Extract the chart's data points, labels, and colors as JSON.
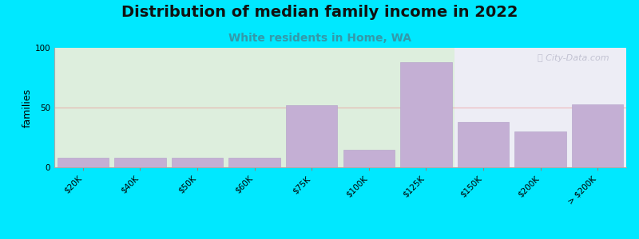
{
  "title": "Distribution of median family income in 2022",
  "subtitle": "White residents in Home, WA",
  "ylabel": "families",
  "categories": [
    "$20K",
    "$40K",
    "$50K",
    "$60K",
    "$75K",
    "$100K",
    "$125K",
    "$150K",
    "$200K",
    "> $200K"
  ],
  "values": [
    8,
    8,
    8,
    8,
    52,
    15,
    88,
    38,
    30,
    53
  ],
  "bar_color": "#c4afd4",
  "bar_edge_color": "#b8a8cc",
  "bg_outer": "#00e8ff",
  "bg_plot_left": "#ddeedd",
  "bg_plot_right": "#ededf5",
  "ylim": [
    0,
    100
  ],
  "yticks": [
    0,
    50,
    100
  ],
  "grid_color": "#f08080",
  "grid_alpha": 0.5,
  "title_fontsize": 14,
  "subtitle_fontsize": 10,
  "subtitle_color": "#3399aa",
  "ylabel_fontsize": 9,
  "tick_fontsize": 7.5,
  "watermark_text": "Ⓣ City-Data.com",
  "watermark_color": "#bbbbcc"
}
